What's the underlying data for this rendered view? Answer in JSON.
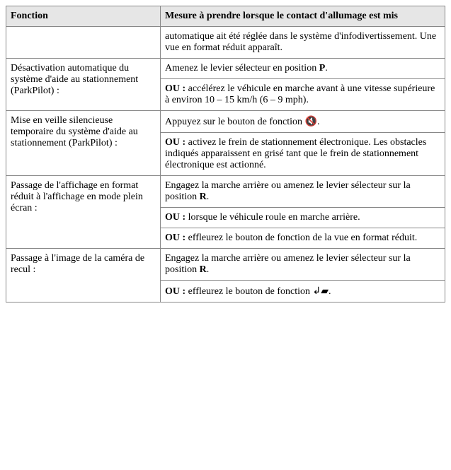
{
  "header": {
    "col1": "Fonction",
    "col2": "Mesure à prendre lorsque le contact d'allumage est mis"
  },
  "cells": {
    "r0_right": "automatique ait été réglée dans le système d'infodivertissement. Une vue en format réduit apparaît.",
    "r1_left": "Désactivation automatique du système d'aide au stationnement (ParkPilot) :",
    "r1_right_a_pre": "Amenez le levier sélecteur en position ",
    "r1_right_a_bold": "P",
    "r1_right_a_post": ".",
    "r1_right_b_bold": "OU :",
    "r1_right_b_rest": " accélérez le véhicule en marche avant à une vitesse supérieure à environ 10 – 15 km/h (6 – 9 mph).",
    "r2_left": "Mise en veille silencieuse temporaire du système d'aide au stationnement (ParkPilot) :",
    "r2_right_a_pre": "Appuyez sur le bouton de fonction ",
    "r2_right_a_icon": "🔇",
    "r2_right_a_post": ".",
    "r2_right_b_bold": "OU :",
    "r2_right_b_rest": " activez le frein de stationnement électronique. Les obstacles indiqués apparaissent en grisé tant que le frein de stationnement électronique est actionné.",
    "r3_left": "Passage de l'affichage en format réduit à l'affichage en mode plein écran :",
    "r3_right_a_pre": "Engagez la marche arrière ou amenez le levier sélecteur sur la position ",
    "r3_right_a_bold": "R",
    "r3_right_a_post": ".",
    "r3_right_b_bold": "OU :",
    "r3_right_b_rest": " lorsque le véhicule roule en marche arrière.",
    "r3_right_c_bold": "OU :",
    "r3_right_c_rest": " effleurez le bouton de fonction de la vue en format réduit.",
    "r4_left": "Passage à l'image de la caméra de recul :",
    "r4_right_a_pre": "Engagez la marche arrière ou amenez le levier sélecteur sur la position ",
    "r4_right_a_bold": "R",
    "r4_right_a_post": ".",
    "r4_right_b_bold": "OU :",
    "r4_right_b_pre": " effleurez le bouton de fonction ",
    "r4_right_b_icon": "↲▰",
    "r4_right_b_post": "."
  }
}
